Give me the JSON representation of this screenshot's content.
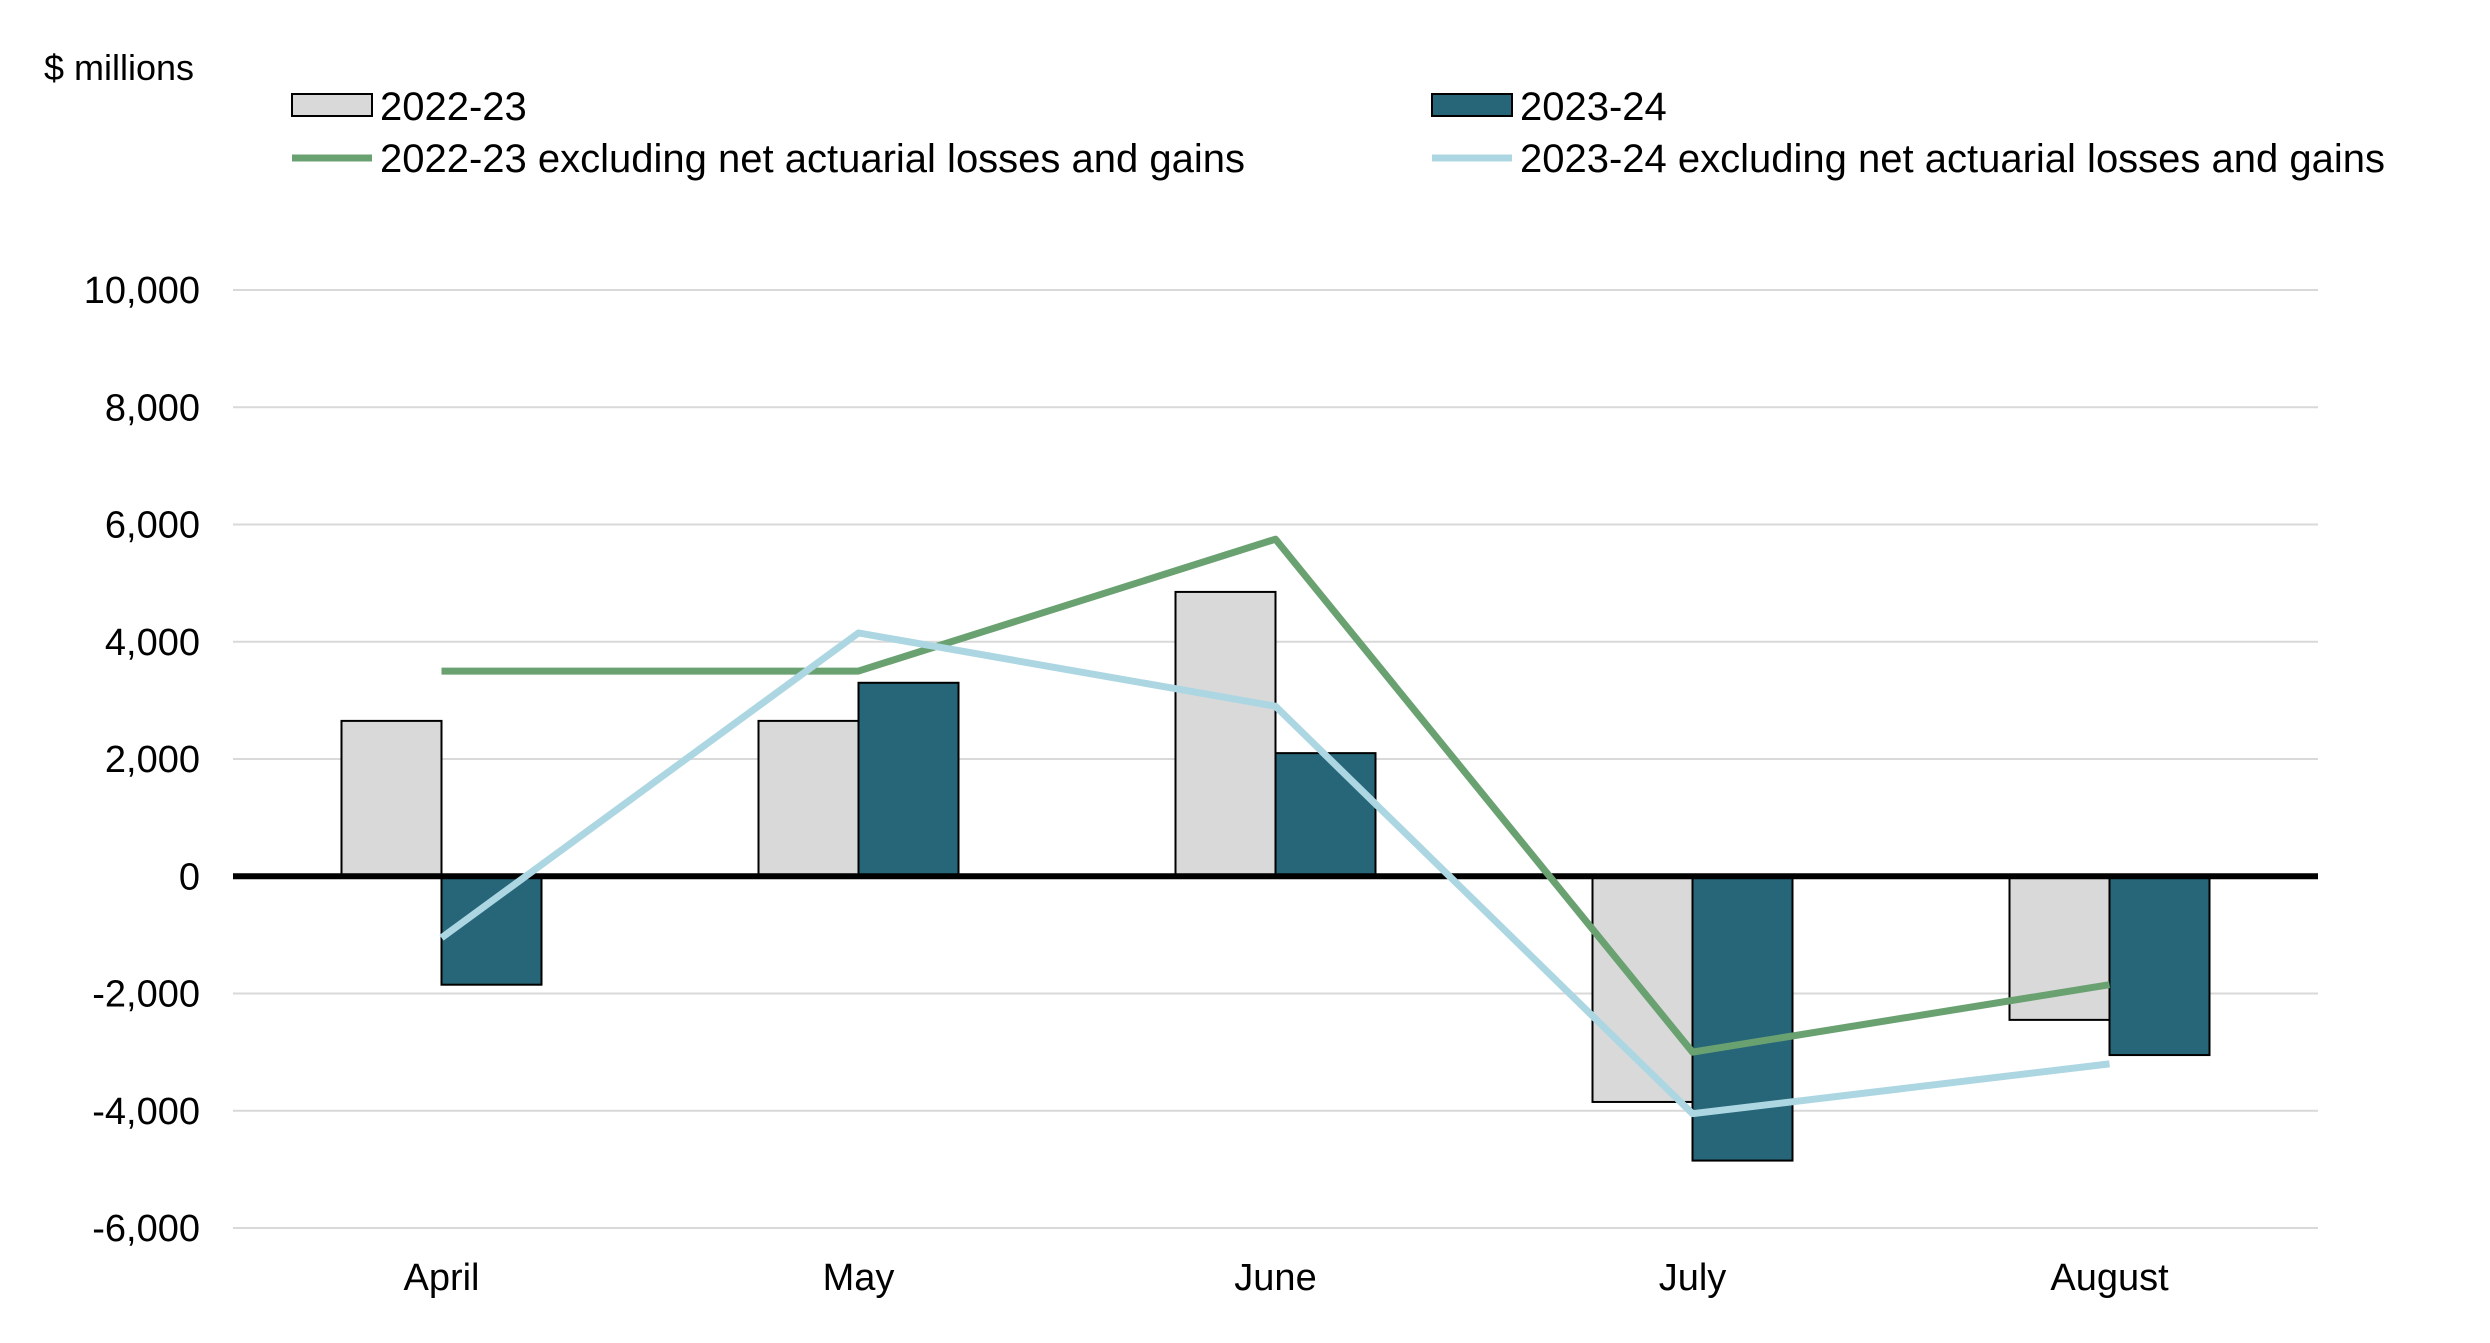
{
  "chart_data": {
    "type": "bar",
    "title": "",
    "ylabel": "$ millions",
    "xlabel": "",
    "categories": [
      "April",
      "May",
      "June",
      "July",
      "August"
    ],
    "series": [
      {
        "name": "2022-23",
        "kind": "bar",
        "color": "#d9d9d9",
        "stroke": "#000000",
        "values": [
          2650,
          2650,
          4850,
          -3850,
          -2450
        ]
      },
      {
        "name": "2023-24",
        "kind": "bar",
        "color": "#276678",
        "stroke": "#000000",
        "values": [
          -1850,
          3300,
          2100,
          -4850,
          -3050
        ]
      },
      {
        "name": "2022-23 excluding net actuarial losses and gains",
        "kind": "line",
        "color": "#6aa171",
        "values": [
          3500,
          3500,
          5750,
          -3000,
          -1850
        ]
      },
      {
        "name": "2023-24 excluding net actuarial losses and gains",
        "kind": "line",
        "color": "#acd7e2",
        "values": [
          -1050,
          4150,
          2900,
          -4050,
          -3200
        ]
      }
    ],
    "ylim": [
      -6000,
      10000
    ],
    "yticks": [
      -6000,
      -4000,
      -2000,
      0,
      2000,
      4000,
      6000,
      8000,
      10000
    ],
    "ytick_labels": [
      "-6,000",
      "-4,000",
      "-2,000",
      "0",
      "2,000",
      "4,000",
      "6,000",
      "8,000",
      "10,000"
    ],
    "grid": true,
    "legend_position": "top"
  }
}
